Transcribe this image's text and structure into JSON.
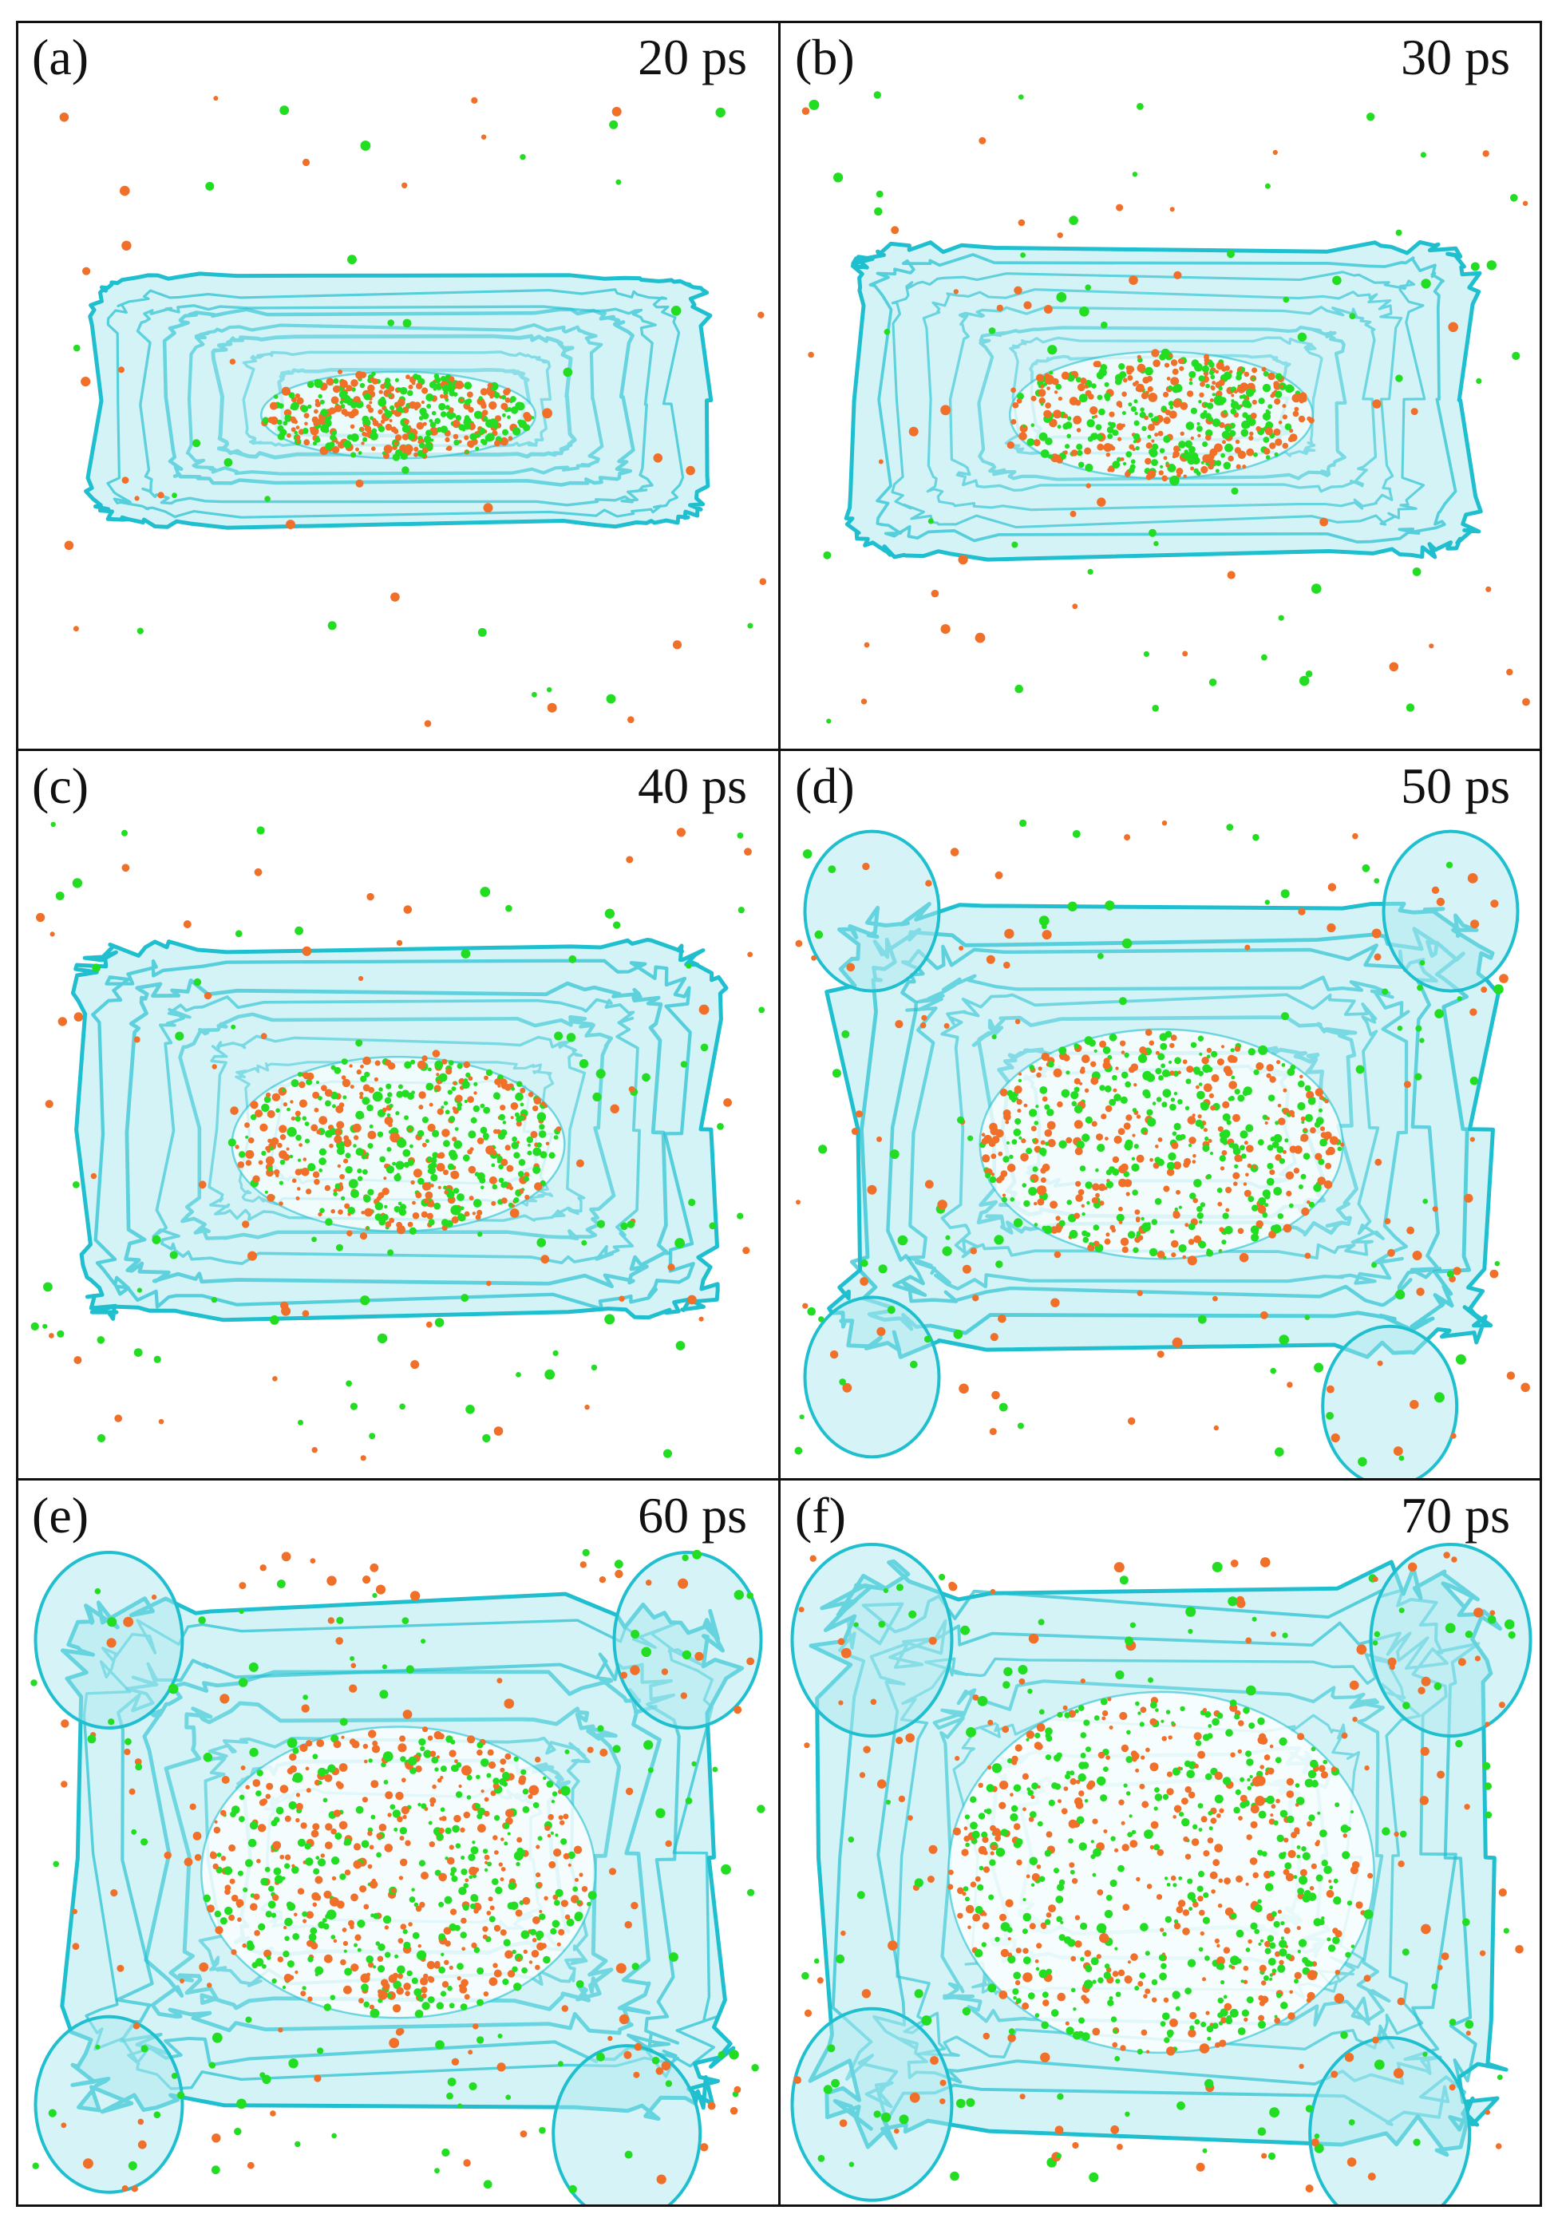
{
  "figure": {
    "panels": [
      {
        "letter": "(a)",
        "time": "20 ps",
        "stage": 0
      },
      {
        "letter": "(b)",
        "time": "30 ps",
        "stage": 1
      },
      {
        "letter": "(c)",
        "time": "40 ps",
        "stage": 2
      },
      {
        "letter": "(d)",
        "time": "50 ps",
        "stage": 3
      },
      {
        "letter": "(e)",
        "time": "60 ps",
        "stage": 4
      },
      {
        "letter": "(f)",
        "time": "70 ps",
        "stage": 5
      }
    ],
    "colors": {
      "surface_stroke": "#1fbfcf",
      "surface_fill": "#aeeaf0",
      "particle_orange": "#f0702a",
      "particle_green": "#22dd22",
      "frame": "#111111"
    }
  }
}
